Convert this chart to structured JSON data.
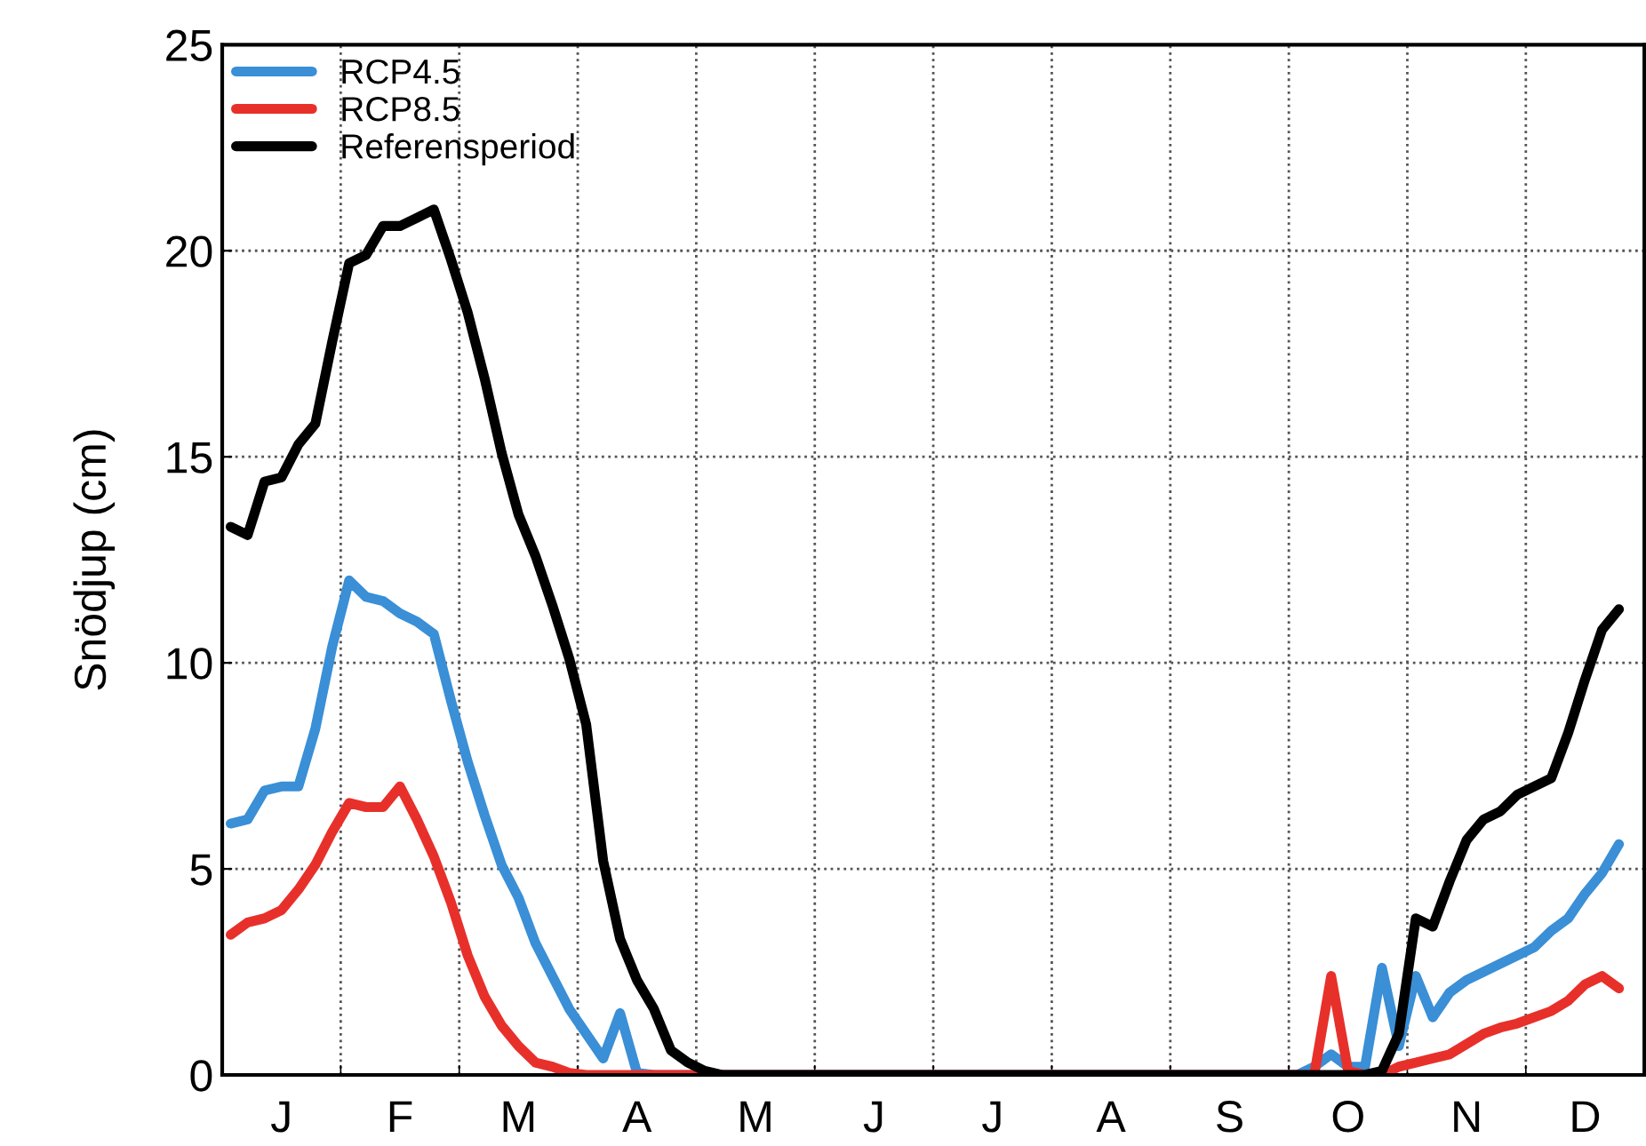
{
  "chart_data": {
    "type": "line",
    "ylabel": "Snödjup (cm)",
    "ylim": [
      0,
      25
    ],
    "yticks": [
      0,
      5,
      10,
      15,
      20,
      25
    ],
    "categories": [
      null,
      null,
      null,
      "J",
      null,
      null,
      null,
      null,
      null,
      null,
      "F",
      null,
      null,
      null,
      null,
      null,
      null,
      "M",
      null,
      null,
      null,
      null,
      null,
      null,
      "A",
      null,
      null,
      null,
      null,
      null,
      null,
      "M",
      null,
      null,
      null,
      null,
      null,
      null,
      "J",
      null,
      null,
      null,
      null,
      null,
      null,
      "J",
      null,
      null,
      null,
      null,
      null,
      null,
      "A",
      null,
      null,
      null,
      null,
      null,
      null,
      "S",
      null,
      null,
      null,
      null,
      null,
      null,
      "O",
      null,
      null,
      null,
      null,
      null,
      null,
      "N",
      null,
      null,
      null,
      null,
      null,
      null,
      "D",
      null,
      null,
      null
    ],
    "grid": true,
    "legend": "top left",
    "line_style": "solid",
    "marker": "none",
    "series": [
      {
        "name": "RCP4.5",
        "color": "#3a8fd6",
        "values": [
          6.1,
          6.2,
          6.9,
          7.0,
          7.0,
          8.4,
          10.4,
          12.0,
          11.6,
          11.5,
          11.2,
          11.0,
          10.7,
          9.1,
          7.6,
          6.3,
          5.1,
          4.3,
          3.2,
          2.4,
          1.6,
          1.0,
          0.4,
          1.5,
          0.05,
          0,
          0,
          0,
          0,
          0,
          0,
          0,
          0,
          0,
          0,
          0,
          0,
          0,
          0,
          0,
          0,
          0,
          0,
          0,
          0,
          0,
          0,
          0,
          0,
          0,
          0,
          0,
          0,
          0,
          0,
          0,
          0,
          0,
          0,
          0,
          0,
          0,
          0,
          0,
          0.2,
          0.5,
          0.2,
          0.2,
          2.6,
          0.7,
          2.4,
          1.4,
          2.0,
          2.3,
          2.5,
          2.7,
          2.9,
          3.1,
          3.5,
          3.8,
          4.4,
          4.9,
          5.6,
          null
        ]
      },
      {
        "name": "RCP8.5",
        "color": "#e8302a",
        "values": [
          3.4,
          3.7,
          3.8,
          4.0,
          4.5,
          5.1,
          5.9,
          6.6,
          6.5,
          6.5,
          7.0,
          6.2,
          5.3,
          4.2,
          2.9,
          1.9,
          1.2,
          0.7,
          0.3,
          0.2,
          0.05,
          0,
          0,
          0,
          0,
          0,
          0,
          0,
          0,
          0,
          0,
          0,
          0,
          0,
          0,
          0,
          0,
          0,
          0,
          0,
          0,
          0,
          0,
          0,
          0,
          0,
          0,
          0,
          0,
          0,
          0,
          0,
          0,
          0,
          0,
          0,
          0,
          0,
          0,
          0,
          0,
          0,
          0,
          0,
          0,
          2.4,
          0.1,
          0,
          0,
          0.2,
          0.3,
          0.4,
          0.5,
          0.75,
          1.0,
          1.15,
          1.25,
          1.4,
          1.55,
          1.8,
          2.2,
          2.4,
          2.1,
          null
        ]
      },
      {
        "name": "Referensperiod",
        "color": "#000000",
        "values": [
          13.3,
          13.1,
          14.4,
          14.5,
          15.3,
          15.8,
          17.8,
          19.7,
          19.9,
          20.6,
          20.6,
          20.8,
          21.0,
          19.8,
          18.5,
          16.9,
          15.1,
          13.6,
          12.6,
          11.4,
          10.1,
          8.5,
          5.2,
          3.3,
          2.3,
          1.6,
          0.6,
          0.3,
          0.1,
          0,
          0,
          0,
          0,
          0,
          0,
          0,
          0,
          0,
          0,
          0,
          0,
          0,
          0,
          0,
          0,
          0,
          0,
          0,
          0,
          0,
          0,
          0,
          0,
          0,
          0,
          0,
          0,
          0,
          0,
          0,
          0,
          0,
          0,
          0,
          0,
          0,
          0,
          0,
          0.1,
          1.0,
          3.8,
          3.6,
          4.7,
          5.7,
          6.2,
          6.4,
          6.8,
          7.0,
          7.2,
          8.3,
          9.6,
          10.8,
          11.3,
          null
        ]
      }
    ]
  }
}
